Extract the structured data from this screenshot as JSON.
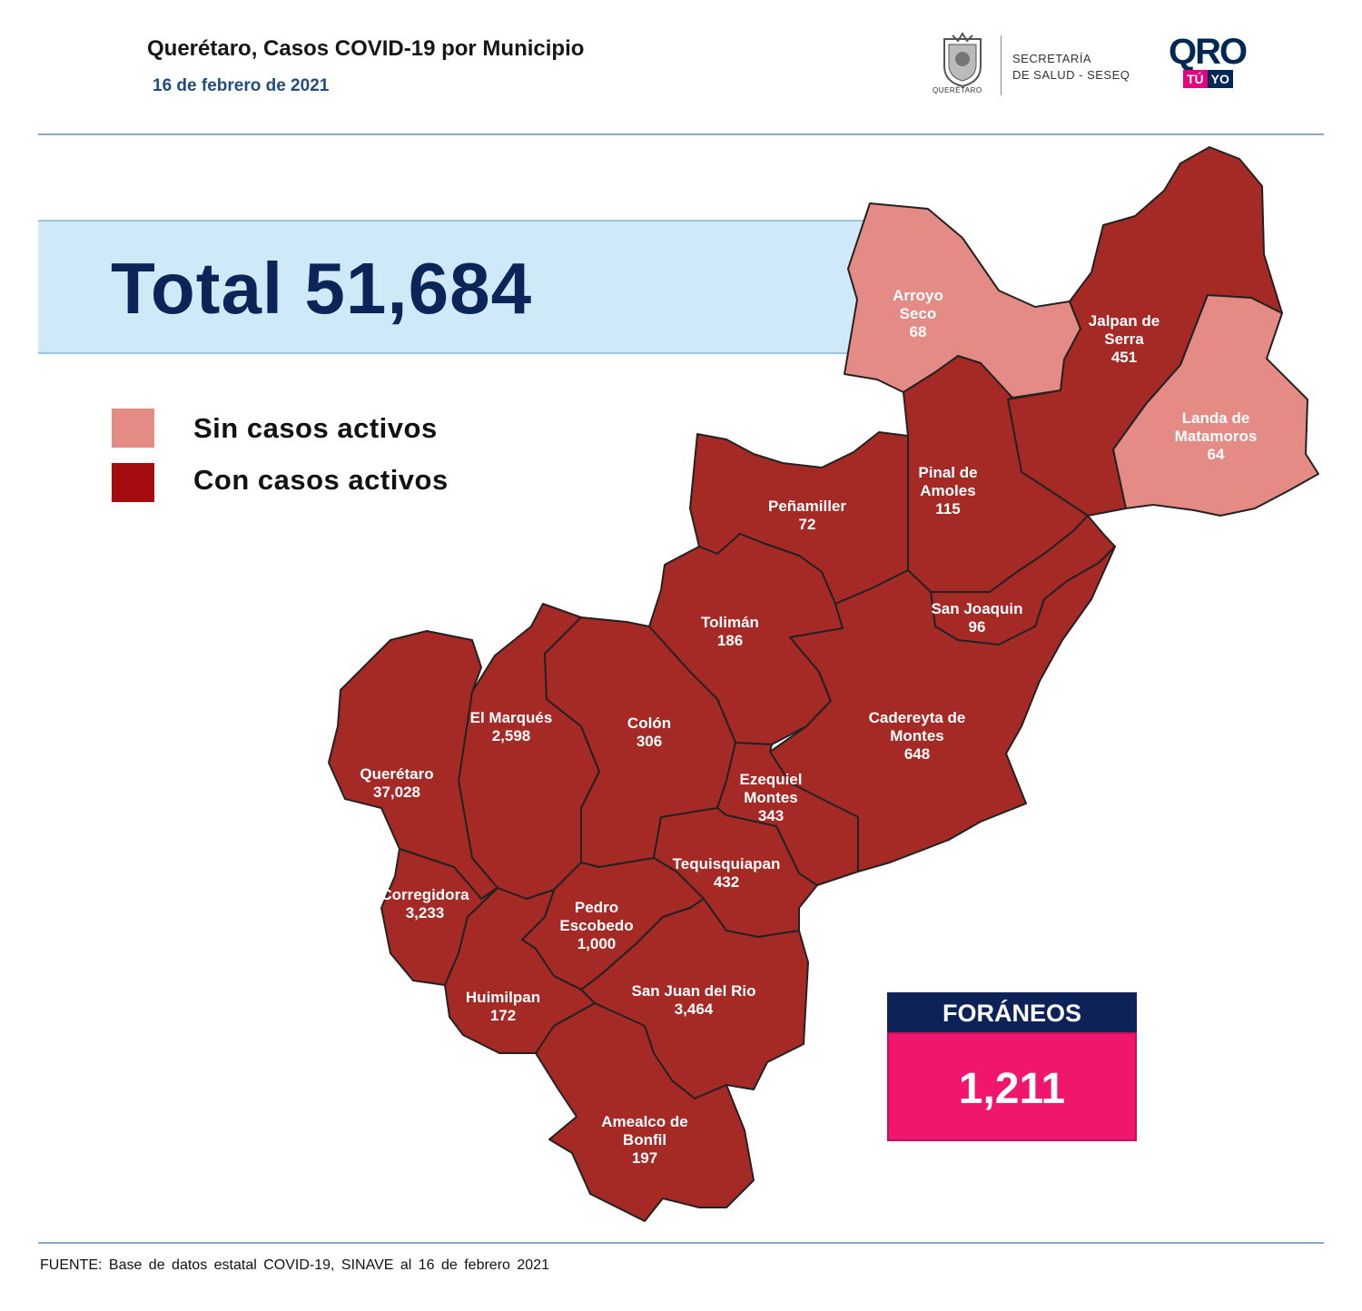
{
  "header": {
    "title": "Querétaro, Casos COVID-19 por Municipio",
    "date": "16 de febrero de 2021"
  },
  "logos": {
    "seal_caption": "QUERÉTARO",
    "secretaria_line1": "SECRETARÍA",
    "secretaria_line2": "DE SALUD - SESEQ",
    "qro": "QRO",
    "tu": "TÚ",
    "yo": "YO"
  },
  "total": {
    "label": "Total 51,684",
    "value": 51684
  },
  "legend": [
    {
      "label": "Sin casos activos",
      "color": "#e48b86"
    },
    {
      "label": "Con casos activos",
      "color": "#a40c10"
    }
  ],
  "map_colors": {
    "active": "#a52a26",
    "no_active": "#e48b86",
    "border": "#222222"
  },
  "municipios": [
    {
      "id": "arroyo-seco",
      "name_lines": [
        "Arroyo",
        "Seco"
      ],
      "cases": "68",
      "active": false
    },
    {
      "id": "jalpan",
      "name_lines": [
        "Jalpan de",
        "Serra"
      ],
      "cases": "451",
      "active": true
    },
    {
      "id": "landa",
      "name_lines": [
        "Landa de",
        "Matamoros"
      ],
      "cases": "64",
      "active": false
    },
    {
      "id": "pinal",
      "name_lines": [
        "Pinal de",
        "Amoles"
      ],
      "cases": "115",
      "active": true
    },
    {
      "id": "penamiller",
      "name_lines": [
        "Peñamiller"
      ],
      "cases": "72",
      "active": true
    },
    {
      "id": "san-joaquin",
      "name_lines": [
        "San Joaquin"
      ],
      "cases": "96",
      "active": true
    },
    {
      "id": "toliman",
      "name_lines": [
        "Tolimán"
      ],
      "cases": "186",
      "active": true
    },
    {
      "id": "cadereyta",
      "name_lines": [
        "Cadereyta de",
        "Montes"
      ],
      "cases": "648",
      "active": true
    },
    {
      "id": "el-marques",
      "name_lines": [
        "El  Marqués"
      ],
      "cases": "2,598",
      "active": true
    },
    {
      "id": "colon",
      "name_lines": [
        "Colón"
      ],
      "cases": "306",
      "active": true
    },
    {
      "id": "queretaro",
      "name_lines": [
        "Querétaro"
      ],
      "cases": "37,028",
      "active": true
    },
    {
      "id": "ezequiel",
      "name_lines": [
        "Ezequiel",
        "Montes"
      ],
      "cases": "343",
      "active": true
    },
    {
      "id": "tequisquiapan",
      "name_lines": [
        "Tequisquiapan"
      ],
      "cases": "432",
      "active": true
    },
    {
      "id": "corregidora",
      "name_lines": [
        "Corregidora"
      ],
      "cases": "3,233",
      "active": true
    },
    {
      "id": "pedro-escobedo",
      "name_lines": [
        "Pedro",
        "Escobedo"
      ],
      "cases": "1,000",
      "active": true
    },
    {
      "id": "huimilpan",
      "name_lines": [
        "Huimilpan"
      ],
      "cases": "172",
      "active": true
    },
    {
      "id": "san-juan",
      "name_lines": [
        "San Juan del Rio"
      ],
      "cases": "3,464",
      "active": true
    },
    {
      "id": "amealco",
      "name_lines": [
        "Amealco de",
        "Bonfil"
      ],
      "cases": "197",
      "active": true
    }
  ],
  "foraneos": {
    "label": "FORÁNEOS",
    "value": "1,211"
  },
  "source": "FUENTE:  Base  de  datos  estatal  COVID-19,  SINAVE  al 16 de febrero 2021"
}
